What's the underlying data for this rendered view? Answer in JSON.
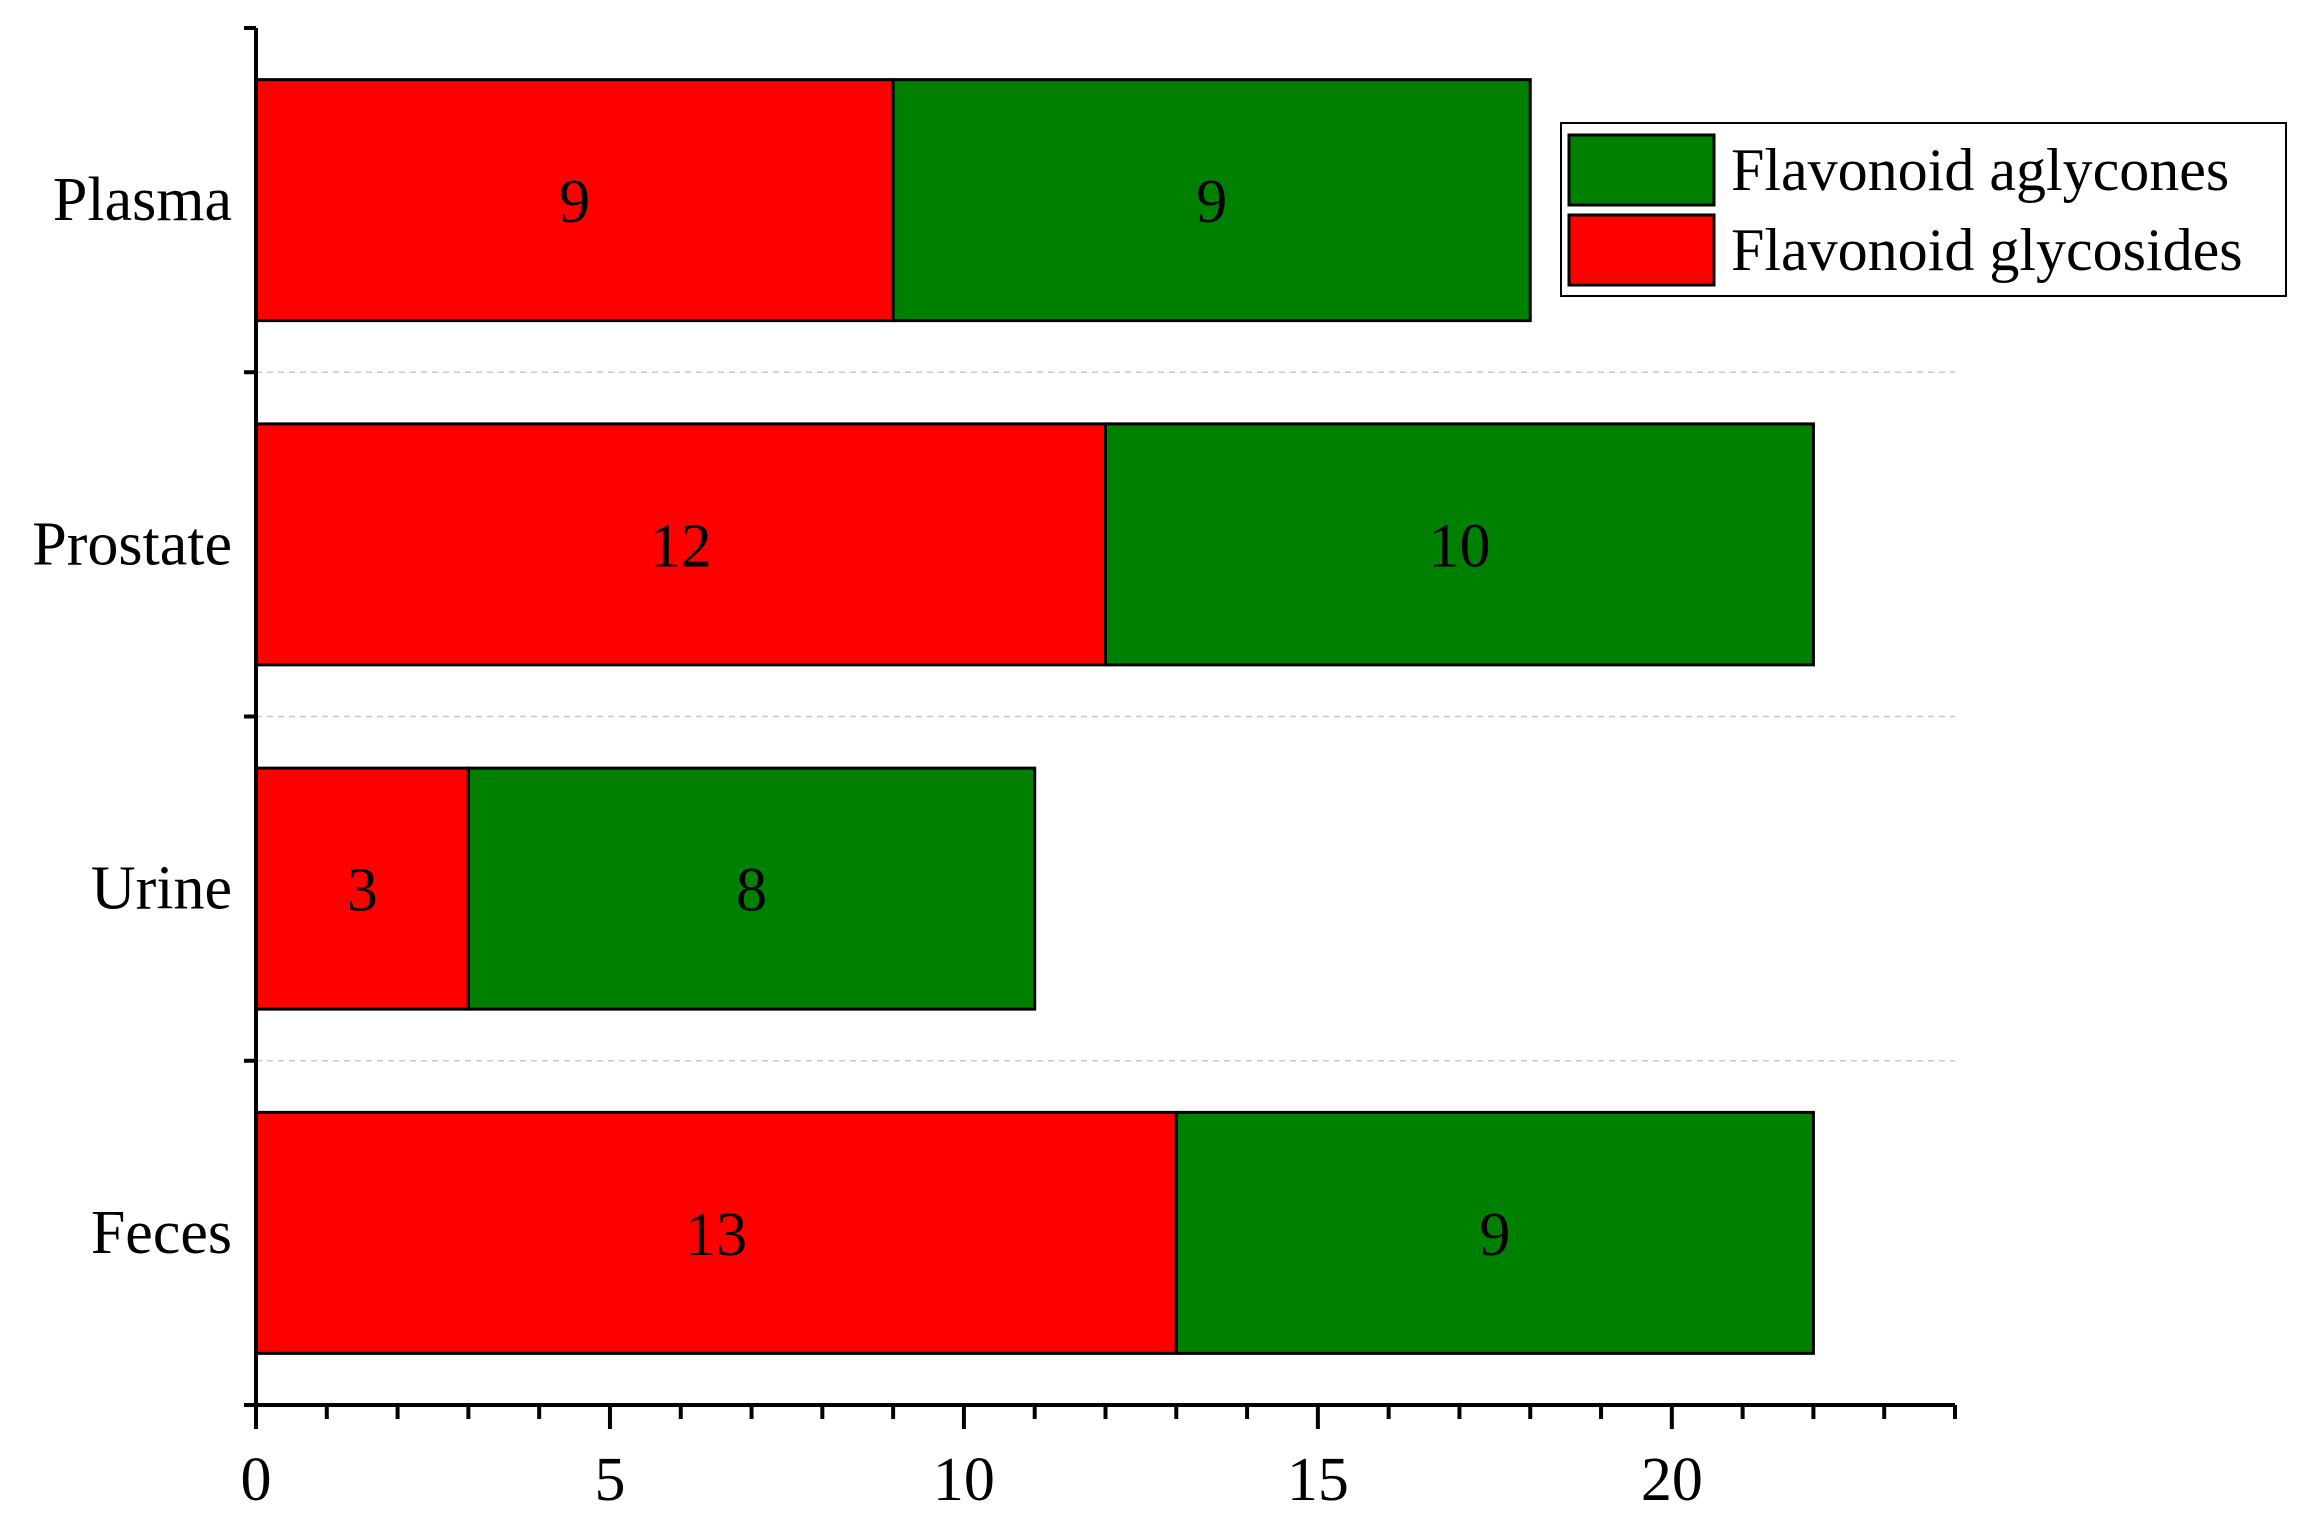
{
  "chart_data": {
    "type": "bar",
    "orientation": "horizontal",
    "stacked": true,
    "title": "",
    "xlabel": "",
    "ylabel": "",
    "categories": [
      "Plasma",
      "Prostate",
      "Urine",
      "Feces"
    ],
    "series": [
      {
        "name": "Flavonoid glycosides",
        "color": "#ff0000",
        "values": [
          9,
          12,
          3,
          13
        ]
      },
      {
        "name": "Flavonoid aglycones",
        "color": "#008000",
        "values": [
          9,
          10,
          8,
          9
        ]
      }
    ],
    "xlim": [
      0,
      24
    ],
    "x_ticks": [
      "0",
      "5",
      "10",
      "15",
      "20"
    ],
    "x_tick_values": [
      0,
      5,
      10,
      15,
      20
    ],
    "minor_tick_step": 1,
    "grid": "dashed horizontal separators between categories",
    "legend": {
      "placement": "top-right",
      "order": [
        "Flavonoid aglycones",
        "Flavonoid glycosides"
      ]
    }
  }
}
